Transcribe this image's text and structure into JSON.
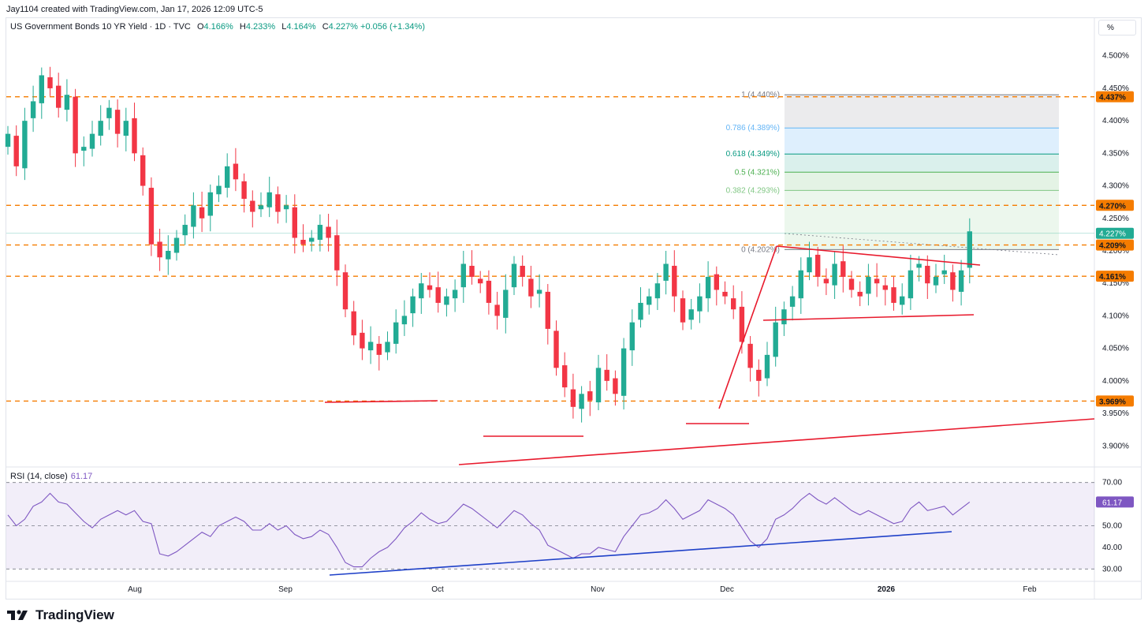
{
  "credit": "Jay1104 created with TradingView.com, Jan 17, 2026 12:09 UTC-5",
  "legend": {
    "symbol": "US Government Bonds 10 YR Yield · 1D · TVC",
    "open_label": "O",
    "open": "4.166%",
    "high_label": "H",
    "high": "4.233%",
    "low_label": "L",
    "low": "4.164%",
    "close_label": "C",
    "close": "4.227%",
    "change": "+0.056 (+1.34%)"
  },
  "scale_button": "%",
  "rsi": {
    "label": "RSI (14, close)",
    "value": "61.17"
  },
  "brand": "TradingView",
  "colors": {
    "up": "#22ab94",
    "down": "#f23645",
    "level": "#f57c00",
    "red_line": "#e8192c",
    "rsi_line": "#7e57c2",
    "rsi_trend": "#1e40c8"
  },
  "chart_data": [
    {
      "type": "candlestick",
      "title": "US Government Bonds 10 YR Yield · 1D · TVC",
      "ylim": [
        3.87,
        4.53
      ],
      "yticks": [
        "4.500%",
        "4.450%",
        "4.400%",
        "4.350%",
        "4.300%",
        "4.250%",
        "4.200%",
        "4.150%",
        "4.100%",
        "4.050%",
        "4.000%",
        "3.950%",
        "3.900%"
      ],
      "yticks_values": [
        4.5,
        4.45,
        4.4,
        4.35,
        4.3,
        4.25,
        4.2,
        4.15,
        4.1,
        4.05,
        4.0,
        3.95,
        3.9
      ],
      "x_labels": [
        "Aug",
        "Sep",
        "Oct",
        "Nov",
        "Dec",
        "2026",
        "Feb"
      ],
      "close_series": [
        4.38,
        4.33,
        4.4,
        4.43,
        4.47,
        4.45,
        4.42,
        4.44,
        4.35,
        4.36,
        4.38,
        4.4,
        4.42,
        4.38,
        4.4,
        4.35,
        4.3,
        4.21,
        4.19,
        4.2,
        4.22,
        4.24,
        4.27,
        4.25,
        4.29,
        4.3,
        4.33,
        4.31,
        4.28,
        4.26,
        4.27,
        4.29,
        4.26,
        4.27,
        4.22,
        4.21,
        4.22,
        4.24,
        4.22,
        4.17,
        4.11,
        4.07,
        4.05,
        4.06,
        4.04,
        4.06,
        4.09,
        4.1,
        4.13,
        4.15,
        4.14,
        4.12,
        4.13,
        4.14,
        4.18,
        4.16,
        4.15,
        4.12,
        4.1,
        4.14,
        4.18,
        4.16,
        4.13,
        4.14,
        4.08,
        4.02,
        3.99,
        3.96,
        3.98,
        3.97,
        4.02,
        4.0,
        3.98,
        4.05,
        4.09,
        4.12,
        4.13,
        4.15,
        4.18,
        4.13,
        4.09,
        4.11,
        4.13,
        4.16,
        4.14,
        4.13,
        4.11,
        4.06,
        4.02,
        4.0,
        4.04,
        4.09,
        4.11,
        4.13,
        4.17,
        4.19,
        4.16,
        4.15,
        4.18,
        4.16,
        4.14,
        4.13,
        4.16,
        4.15,
        4.14,
        4.12,
        4.13,
        4.17,
        4.18,
        4.15,
        4.16,
        4.17,
        4.14,
        4.17,
        4.23
      ],
      "levels": [
        4.437,
        4.27,
        4.209,
        4.161,
        3.969
      ],
      "level_labels": [
        "4.437%",
        "4.270%",
        "4.209%",
        "4.161%",
        "3.969%"
      ],
      "last_price": 4.227,
      "last_price_label": "4.227%",
      "fib_retracement": {
        "levels": [
          {
            "ratio": "1",
            "value": 4.44,
            "label": "1 (4.440%)"
          },
          {
            "ratio": "0.786",
            "value": 4.389,
            "label": "0.786 (4.389%)"
          },
          {
            "ratio": "0.618",
            "value": 4.349,
            "label": "0.618 (4.349%)"
          },
          {
            "ratio": "0.5",
            "value": 4.321,
            "label": "0.5 (4.321%)"
          },
          {
            "ratio": "0.382",
            "value": 4.293,
            "label": "0.382 (4.293%)"
          },
          {
            "ratio": "0",
            "value": 4.202,
            "label": "0 (4.202%)"
          }
        ]
      }
    },
    {
      "type": "line",
      "title": "RSI (14, close)",
      "ylim": [
        25,
        75
      ],
      "yticks": [
        "70.00",
        "50.00",
        "40.00",
        "30.00"
      ],
      "yticks_values": [
        70,
        50,
        40,
        30
      ],
      "values": [
        55,
        50,
        53,
        59,
        61,
        65,
        61,
        60,
        56,
        52,
        49,
        53,
        55,
        57,
        55,
        57,
        52,
        51,
        37,
        36,
        38,
        41,
        44,
        47,
        45,
        50,
        52,
        54,
        52,
        48,
        48,
        51,
        48,
        50,
        46,
        44,
        45,
        48,
        46,
        40,
        33,
        31,
        31,
        35,
        38,
        40,
        44,
        49,
        52,
        56,
        53,
        51,
        52,
        56,
        60,
        58,
        55,
        52,
        49,
        53,
        57,
        55,
        51,
        48,
        41,
        39,
        37,
        35,
        37,
        37,
        40,
        39,
        38,
        45,
        50,
        55,
        56,
        58,
        62,
        58,
        53,
        55,
        57,
        62,
        60,
        58,
        55,
        49,
        43,
        40,
        44,
        53,
        55,
        58,
        62,
        65,
        62,
        60,
        63,
        60,
        57,
        55,
        57,
        55,
        53,
        51,
        52,
        58,
        61,
        57,
        58,
        59,
        55,
        58,
        61
      ]
    }
  ]
}
